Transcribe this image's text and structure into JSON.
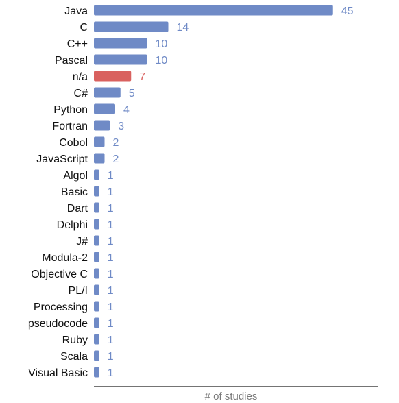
{
  "chart_data": {
    "type": "bar",
    "orientation": "horizontal",
    "categories": [
      "Java",
      "C",
      "C++",
      "Pascal",
      "n/a",
      "C#",
      "Python",
      "Fortran",
      "Cobol",
      "JavaScript",
      "Algol",
      "Basic",
      "Dart",
      "Delphi",
      "J#",
      "Modula-2",
      "Objective C",
      "PL/I",
      "Processing",
      "pseudocode",
      "Ruby",
      "Scala",
      "Visual Basic"
    ],
    "values": [
      45,
      14,
      10,
      10,
      7,
      5,
      4,
      3,
      2,
      2,
      1,
      1,
      1,
      1,
      1,
      1,
      1,
      1,
      1,
      1,
      1,
      1,
      1
    ],
    "data_labels": [
      "45",
      "14",
      "10",
      "10",
      "7",
      "5",
      "4",
      "3",
      "2",
      "2",
      "1",
      "1",
      "1",
      "1",
      "1",
      "1",
      "1",
      "1",
      "1",
      "1",
      "1",
      "1",
      "1"
    ],
    "highlight_category": "n/a",
    "xlabel": "# of studies",
    "ylabel": "",
    "title": "",
    "xlim": [
      0,
      54
    ],
    "grid": false,
    "legend": "none",
    "colors": {
      "bar": "#6f8ac6",
      "highlight_bar": "#d9615f",
      "value_label": "#6f8ac6",
      "highlight_value_label": "#d9615f",
      "category_label": "#111111",
      "axis_line": "#222222",
      "axis_title": "#7a7a7a"
    }
  }
}
